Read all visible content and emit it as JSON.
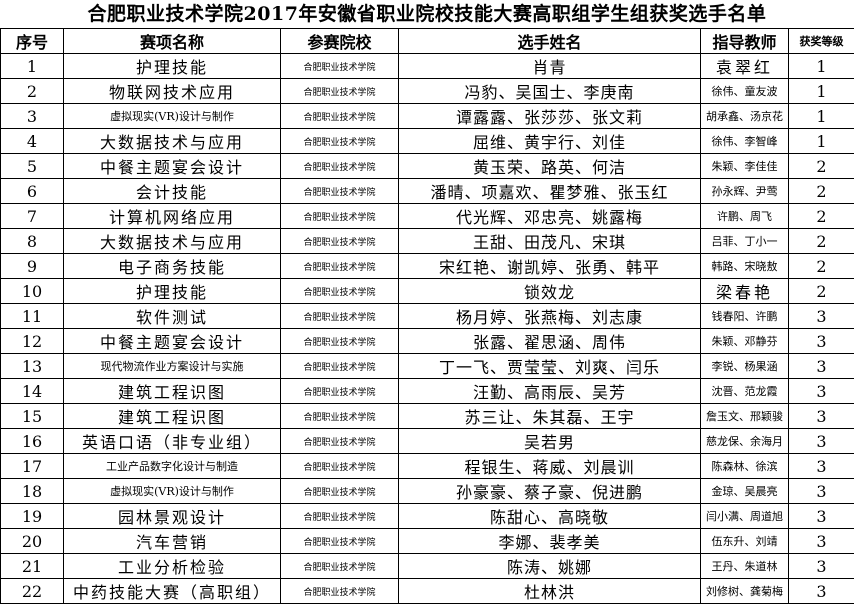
{
  "title": "合肥职业技术学院2017年安徽省职业院校技能大赛高职组学生组获奖选手名单",
  "headers": [
    "序号",
    "赛项名称",
    "参赛院校",
    "选手姓名",
    "指导教师",
    "获奖等级"
  ],
  "rows": [
    {
      "no": "1",
      "event": "护理技能",
      "school": "合肥职业技术学院",
      "students": "肖青",
      "teachers": "袁翠红",
      "level": "1"
    },
    {
      "no": "2",
      "event": "物联网技术应用",
      "school": "合肥职业技术学院",
      "students": "冯豹、吴国士、李庚南",
      "teachers": "徐伟、童友波",
      "level": "1"
    },
    {
      "no": "3",
      "event": "虚拟现实(VR)设计与制作",
      "school": "合肥职业技术学院",
      "students": "谭露露、张莎莎、张文莉",
      "teachers": "胡承鑫、汤京花",
      "level": "1"
    },
    {
      "no": "4",
      "event": "大数据技术与应用",
      "school": "合肥职业技术学院",
      "students": "屈维、黄宇行、刘佳",
      "teachers": "徐伟、李智峰",
      "level": "1"
    },
    {
      "no": "5",
      "event": "中餐主题宴会设计",
      "school": "合肥职业技术学院",
      "students": "黄玉荣、路英、何洁",
      "teachers": "朱颖、李佳佳",
      "level": "2"
    },
    {
      "no": "6",
      "event": "会计技能",
      "school": "合肥职业技术学院",
      "students": "潘晴、项嘉欢、瞿梦雅、张玉红",
      "teachers": "孙永辉、尹莺",
      "level": "2"
    },
    {
      "no": "7",
      "event": "计算机网络应用",
      "school": "合肥职业技术学院",
      "students": "代光辉、邓忠亮、姚露梅",
      "teachers": "许鹏、周飞",
      "level": "2"
    },
    {
      "no": "8",
      "event": "大数据技术与应用",
      "school": "合肥职业技术学院",
      "students": "王甜、田茂凡、宋琪",
      "teachers": "吕菲、丁小一",
      "level": "2"
    },
    {
      "no": "9",
      "event": "电子商务技能",
      "school": "合肥职业技术学院",
      "students": "宋红艳、谢凯婷、张勇、韩平",
      "teachers": "韩路、宋晓敖",
      "level": "2"
    },
    {
      "no": "10",
      "event": "护理技能",
      "school": "合肥职业技术学院",
      "students": "锁效龙",
      "teachers": "梁春艳",
      "level": "2"
    },
    {
      "no": "11",
      "event": "软件测试",
      "school": "合肥职业技术学院",
      "students": "杨月婷、张燕梅、刘志康",
      "teachers": "钱春阳、许鹏",
      "level": "3"
    },
    {
      "no": "12",
      "event": "中餐主题宴会设计",
      "school": "合肥职业技术学院",
      "students": "张露、翟思涵、周伟",
      "teachers": "朱颖、邓静芬",
      "level": "3"
    },
    {
      "no": "13",
      "event": "现代物流作业方案设计与实施",
      "school": "合肥职业技术学院",
      "students": "丁一飞、贾莹莹、刘爽、闫乐",
      "teachers": "李锐、杨果涵",
      "level": "3"
    },
    {
      "no": "14",
      "event": "建筑工程识图",
      "school": "合肥职业技术学院",
      "students": "汪勤、高雨辰、吴芳",
      "teachers": "沈晋、范龙霞",
      "level": "3"
    },
    {
      "no": "15",
      "event": "建筑工程识图",
      "school": "合肥职业技术学院",
      "students": "苏三让、朱其磊、王宇",
      "teachers": "詹玉文、邢颖骏",
      "level": "3"
    },
    {
      "no": "16",
      "event": "英语口语（非专业组）",
      "school": "合肥职业技术学院",
      "students": "吴若男",
      "teachers": "慈龙保、余海月",
      "level": "3"
    },
    {
      "no": "17",
      "event": "工业产品数字化设计与制造",
      "school": "合肥职业技术学院",
      "students": "程银生、蒋威、刘晨训",
      "teachers": "陈森林、徐滨",
      "level": "3"
    },
    {
      "no": "18",
      "event": "虚拟现实(VR)设计与制作",
      "school": "合肥职业技术学院",
      "students": "孙豪豪、蔡子豪、倪进鹏",
      "teachers": "金琼、吴晨亮",
      "level": "3"
    },
    {
      "no": "19",
      "event": "园林景观设计",
      "school": "合肥职业技术学院",
      "students": "陈甜心、高晓敬",
      "teachers": "闫小满、周道旭",
      "level": "3"
    },
    {
      "no": "20",
      "event": "汽车营销",
      "school": "合肥职业技术学院",
      "students": "李娜、裴孝美",
      "teachers": "伍东升、刘靖",
      "level": "3"
    },
    {
      "no": "21",
      "event": "工业分析检验",
      "school": "合肥职业技术学院",
      "students": "陈涛、姚娜",
      "teachers": "王丹、朱道林",
      "level": "3"
    },
    {
      "no": "22",
      "event": "中药技能大赛（高职组）",
      "school": "合肥职业技术学院",
      "students": "杜林洪",
      "teachers": "刘修树、龚菊梅",
      "level": "3"
    }
  ]
}
